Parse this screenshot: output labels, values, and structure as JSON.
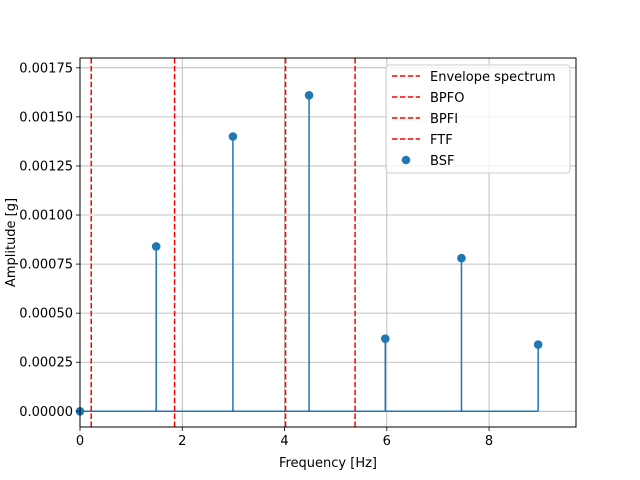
{
  "chart_data": {
    "type": "stem",
    "xlabel": "Frequency [Hz]",
    "ylabel": "Amplitude [g]",
    "xlim": [
      0,
      9.7
    ],
    "ylim": [
      -8e-05,
      0.0018
    ],
    "grid": true,
    "xticks": [
      0,
      2,
      4,
      6,
      8
    ],
    "xtick_labels": [
      "0",
      "2",
      "4",
      "6",
      "8"
    ],
    "yticks": [
      0,
      0.00025,
      0.0005,
      0.00075,
      0.001,
      0.00125,
      0.0015,
      0.00175
    ],
    "ytick_labels": [
      "0.00000",
      "0.00025",
      "0.00050",
      "0.00075",
      "0.00100",
      "0.00125",
      "0.00150",
      "0.00175"
    ],
    "stem_series": {
      "color": "#1f77b4",
      "x": [
        0,
        1.49,
        2.99,
        4.48,
        5.97,
        7.46,
        8.96
      ],
      "y": [
        0.0,
        0.00084,
        0.0014,
        0.00161,
        0.00037,
        0.00078,
        0.00034
      ]
    },
    "vlines": [
      {
        "x": 0.22,
        "color": "#ff0000"
      },
      {
        "x": 1.85,
        "color": "#ff0000"
      },
      {
        "x": 4.02,
        "color": "#ff0000"
      },
      {
        "x": 5.38,
        "color": "#ff0000"
      }
    ],
    "legend": {
      "position": "upper right",
      "entries": [
        {
          "label": "Envelope spectrum",
          "style": "dashed-line",
          "color": "#ff0000"
        },
        {
          "label": "BPFO",
          "style": "dashed-line",
          "color": "#ff0000"
        },
        {
          "label": "BPFI",
          "style": "dashed-line",
          "color": "#ff0000"
        },
        {
          "label": "FTF",
          "style": "dashed-line",
          "color": "#ff0000"
        },
        {
          "label": "BSF",
          "style": "marker",
          "color": "#1f77b4"
        }
      ]
    }
  }
}
